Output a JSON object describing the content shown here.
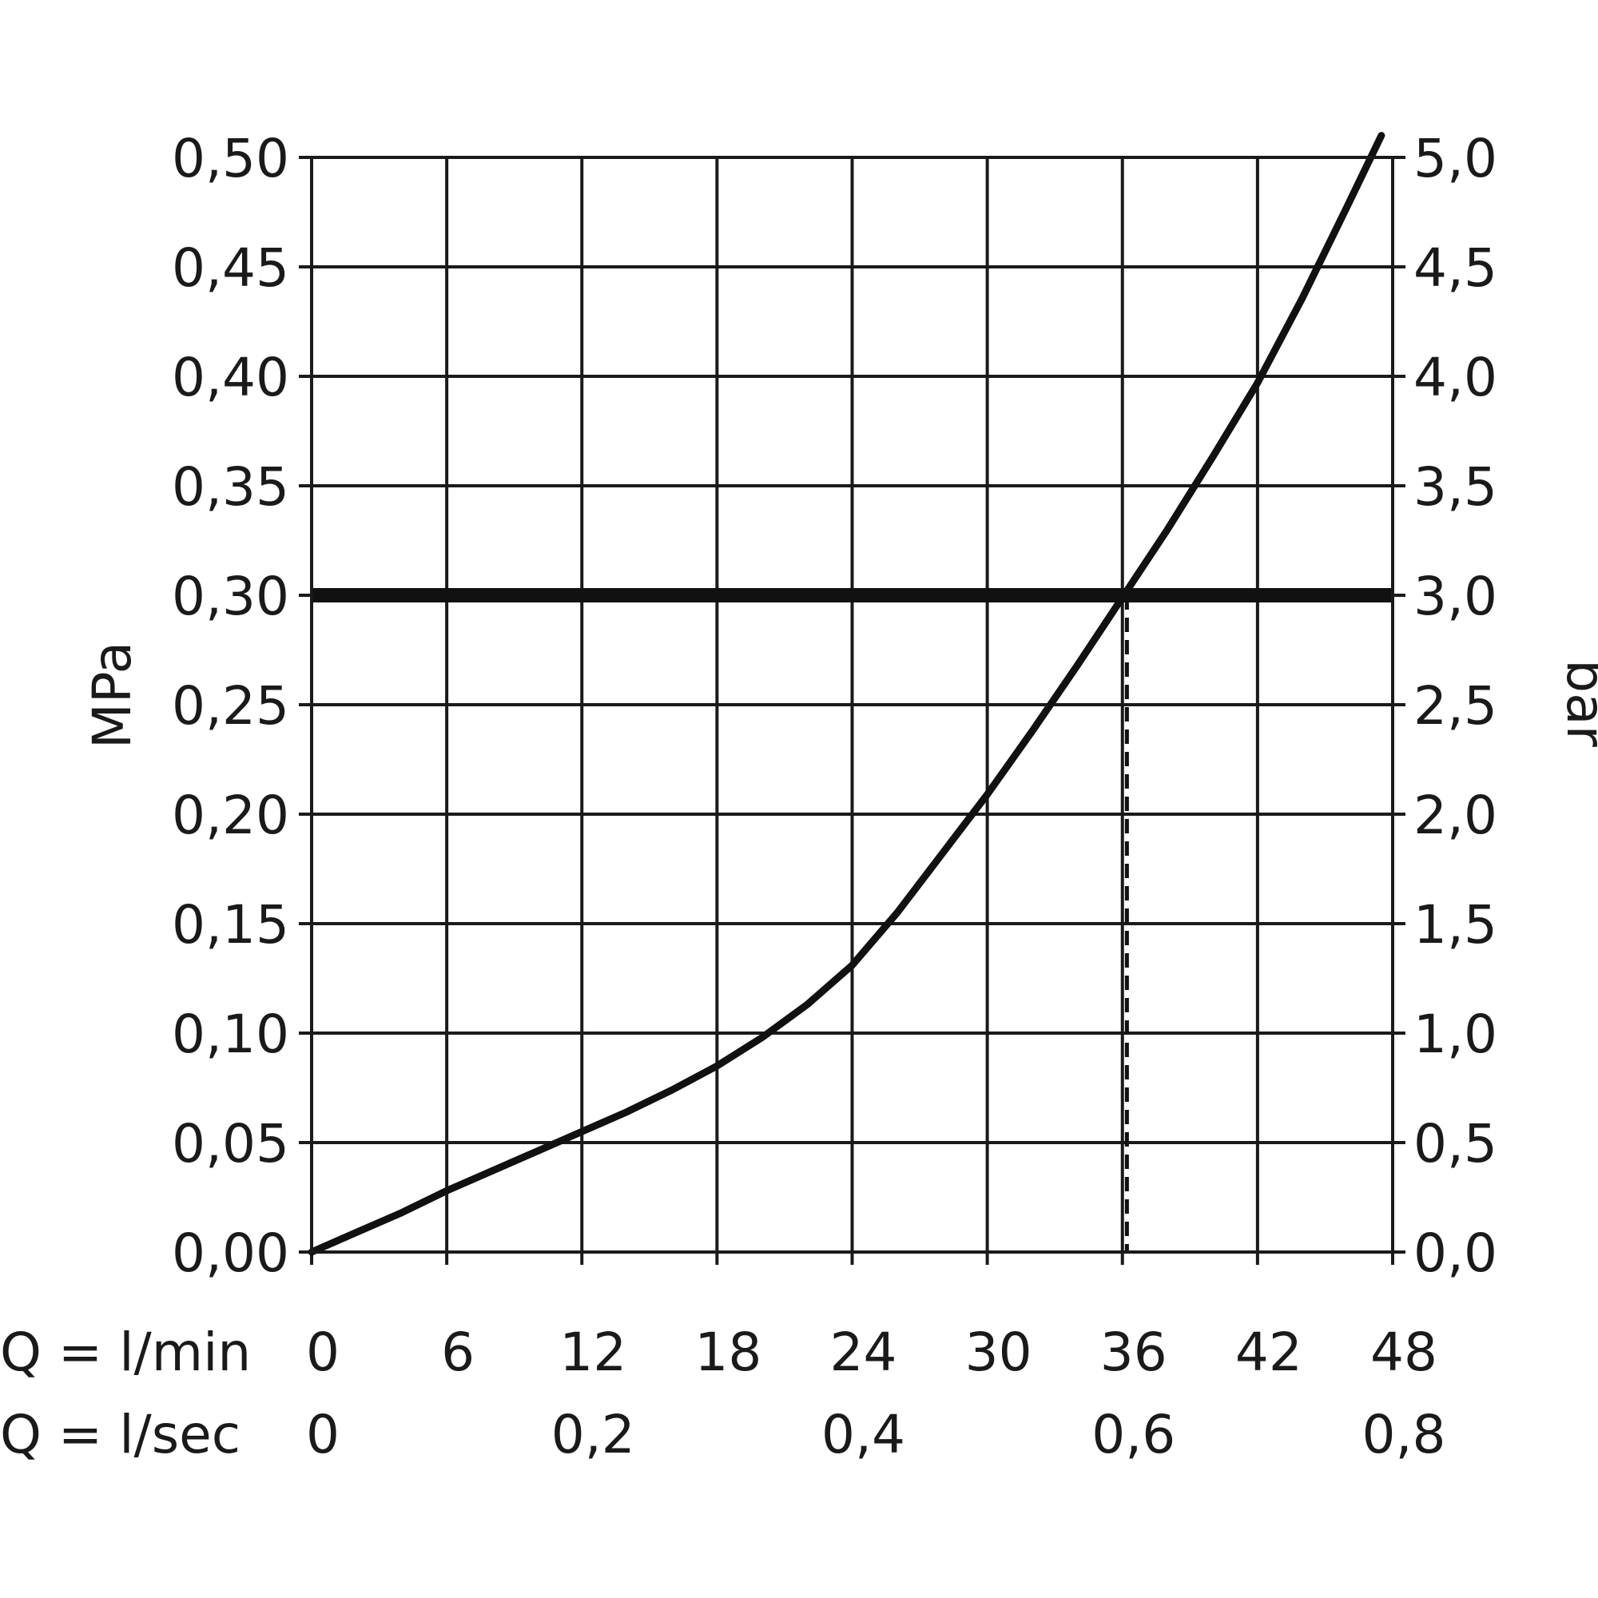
{
  "chart_data": {
    "type": "line",
    "title": "",
    "left_axis": {
      "label": "MPa",
      "ylim": [
        0,
        0.5
      ],
      "ticks": [
        0,
        0.05,
        0.1,
        0.15,
        0.2,
        0.25,
        0.3,
        0.35,
        0.4,
        0.45,
        0.5
      ],
      "tick_labels": [
        "0,00",
        "0,05",
        "0,10",
        "0,15",
        "0,20",
        "0,25",
        "0,30",
        "0,35",
        "0,40",
        "0,45",
        "0,50"
      ]
    },
    "right_axis": {
      "label": "bar",
      "ylim": [
        0,
        5
      ],
      "ticks": [
        0,
        0.5,
        1,
        1.5,
        2,
        2.5,
        3,
        3.5,
        4,
        4.5,
        5
      ],
      "tick_labels": [
        "0,0",
        "0,5",
        "1,0",
        "1,5",
        "2,0",
        "2,5",
        "3,0",
        "3,5",
        "4,0",
        "4,5",
        "5,0"
      ]
    },
    "x_axis_min": {
      "label": "Q = l/min",
      "xlim": [
        0,
        48
      ],
      "ticks": [
        0,
        6,
        12,
        18,
        24,
        30,
        36,
        42,
        48
      ],
      "tick_labels": [
        "0",
        "6",
        "12",
        "18",
        "24",
        "30",
        "36",
        "42",
        "48"
      ]
    },
    "x_axis_sec": {
      "label": "Q = l/sec",
      "ticks": [
        0,
        0.2,
        0.4,
        0.6,
        0.8
      ],
      "tick_labels": [
        "0",
        "0,2",
        "0,4",
        "0,6",
        "0,8"
      ]
    },
    "grid": true,
    "series": [
      {
        "x": [
          0,
          2,
          4,
          6,
          8,
          10,
          12,
          14,
          16,
          18,
          20,
          22,
          24,
          26,
          28,
          30,
          32,
          34,
          36,
          38,
          40,
          42,
          44,
          46,
          47.5
        ],
        "y": [
          0,
          0.009,
          0.018,
          0.028,
          0.037,
          0.046,
          0.055,
          0.064,
          0.074,
          0.085,
          0.098,
          0.113,
          0.131,
          0.155,
          0.182,
          0.209,
          0.238,
          0.268,
          0.299,
          0.33,
          0.363,
          0.397,
          0.436,
          0.478,
          0.51
        ]
      }
    ],
    "reference_line": {
      "y": 0.3
    },
    "marker_line": {
      "x": 36.2,
      "y_top": 0.3
    }
  }
}
